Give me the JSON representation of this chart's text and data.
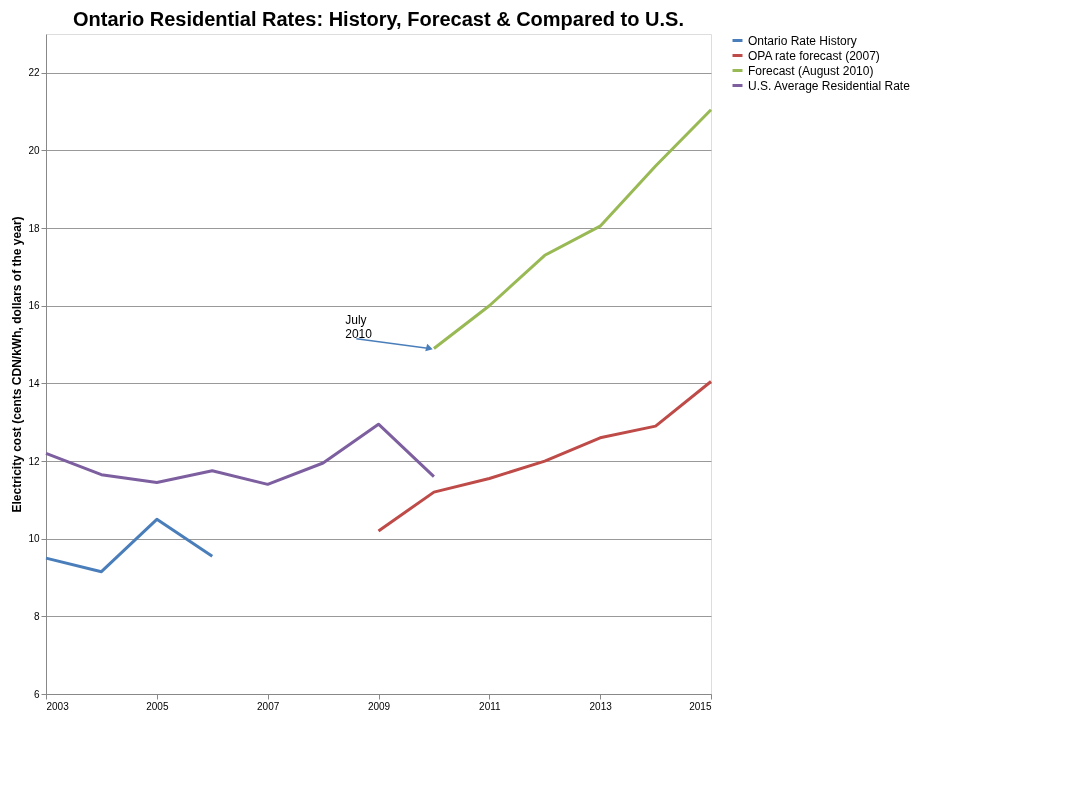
{
  "chart_data": {
    "type": "line",
    "title": "Ontario Residential Rates: History, Forecast & Compared to U.S.",
    "ylabel": "Electricity cost (cents CDN/kWh, dollars of the year)",
    "xlim": [
      2003,
      2015
    ],
    "xticks": [
      2003,
      2005,
      2007,
      2009,
      2011,
      2013,
      2015
    ],
    "ylim": [
      6,
      23
    ],
    "yticks": [
      6,
      8,
      10,
      12,
      14,
      16,
      18,
      20,
      22
    ],
    "grid": "y",
    "legend": "right",
    "series": [
      {
        "name": "Ontario Rate History",
        "color": "#4a7ebb",
        "x": [
          2003,
          2004,
          2005,
          2006
        ],
        "values": [
          9.5,
          9.15,
          10.5,
          9.55
        ]
      },
      {
        "name": "OPA rate forecast (2007)",
        "color": "#be4b48",
        "x": [
          2009,
          2010,
          2011,
          2012,
          2013,
          2014,
          2015
        ],
        "values": [
          10.2,
          11.2,
          11.55,
          12.0,
          12.6,
          12.9,
          14.05
        ]
      },
      {
        "name": "Forecast (August 2010)",
        "color": "#98b954",
        "x": [
          2010,
          2011,
          2012,
          2013,
          2014,
          2015
        ],
        "values": [
          14.9,
          16.0,
          17.3,
          18.05,
          19.6,
          21.05
        ]
      },
      {
        "name": "U.S. Average Residential Rate",
        "color": "#7d5fa0",
        "x": [
          2003,
          2004,
          2005,
          2006,
          2007,
          2008,
          2009,
          2010
        ],
        "values": [
          12.2,
          11.65,
          11.45,
          11.75,
          11.4,
          11.95,
          12.95,
          11.6
        ]
      }
    ],
    "annotations": [
      {
        "text": "July 2010",
        "x": 2010,
        "y": 14.9
      }
    ]
  }
}
